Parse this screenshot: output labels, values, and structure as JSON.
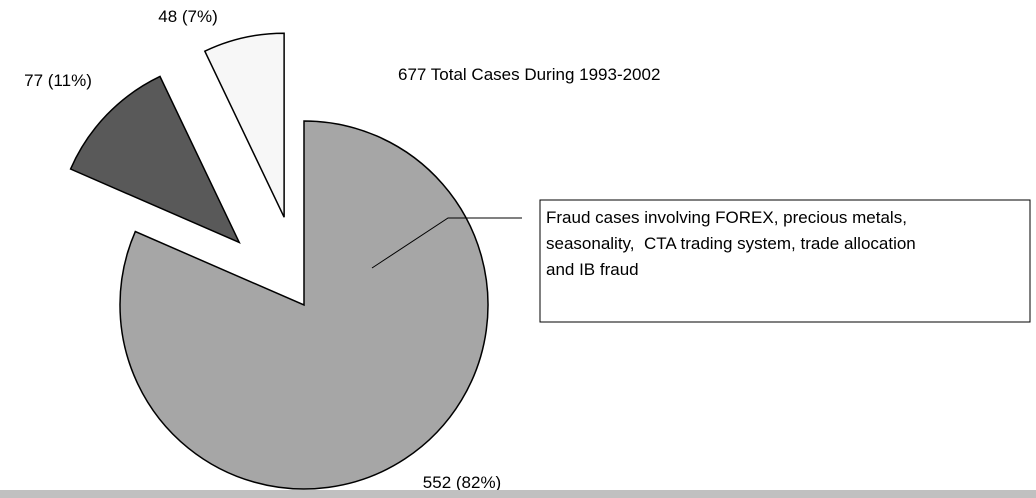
{
  "chart_data": {
    "type": "pie",
    "title": "677 Total Cases During 1993-2002",
    "values": [
      552,
      77,
      48
    ],
    "value_labels": [
      "552 (82%)",
      "77 (11%)",
      "48 (7%)"
    ],
    "colors": [
      "#a6a6a6",
      "#595959",
      "#f7f7f7"
    ],
    "exploded": [
      false,
      true,
      true
    ],
    "annotation": [
      "Fraud cases involving FOREX, precious metals,",
      "seasonality,  CTA trading system, trade allocation",
      "and IB fraud"
    ]
  }
}
